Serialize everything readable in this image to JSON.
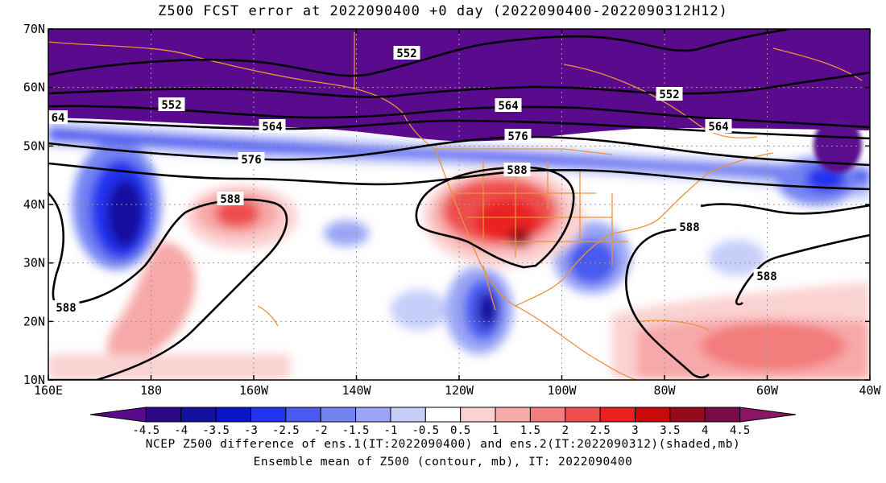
{
  "title": "Z500 FCST error at 2022090400 +0 day (2022090400-2022090312H12)",
  "lat_labels": [
    "70N",
    "60N",
    "50N",
    "40N",
    "30N",
    "20N",
    "10N"
  ],
  "lon_labels": [
    "160E",
    "180",
    "160W",
    "140W",
    "120W",
    "100W",
    "80W",
    "60W",
    "40W"
  ],
  "contour_labels": [
    "552",
    "552",
    "552",
    "564",
    "564",
    "564",
    "64",
    "576",
    "576",
    "588",
    "588",
    "588",
    "588",
    "588"
  ],
  "colorbar": {
    "labels": [
      "-4.5",
      "-4",
      "-3.5",
      "-3",
      "-2.5",
      "-2",
      "-1.5",
      "-1",
      "-0.5",
      "0.5",
      "1",
      "1.5",
      "2",
      "2.5",
      "3",
      "3.5",
      "4",
      "4.5"
    ],
    "colors": [
      "#5a0a8c",
      "#2b0a8a",
      "#13119e",
      "#0a14c8",
      "#2233ee",
      "#4a5af0",
      "#7384f2",
      "#9aa6f5",
      "#c6cdf9",
      "#ffffff",
      "#fbd2d2",
      "#f7a8a8",
      "#f37c7c",
      "#ef4e4e",
      "#eb2020",
      "#c80a0a",
      "#960a1e",
      "#780a46",
      "#8c1464"
    ]
  },
  "caption_line1": "NCEP Z500 difference of ens.1(IT:2022090400) and ens.2(IT:2022090312)(shaded,mb)",
  "caption_line2": "Ensemble mean of Z500 (contour, mb), IT: 2022090400",
  "colors": {
    "land_outline": "#e8943c",
    "grid": "#9a9a9a"
  }
}
